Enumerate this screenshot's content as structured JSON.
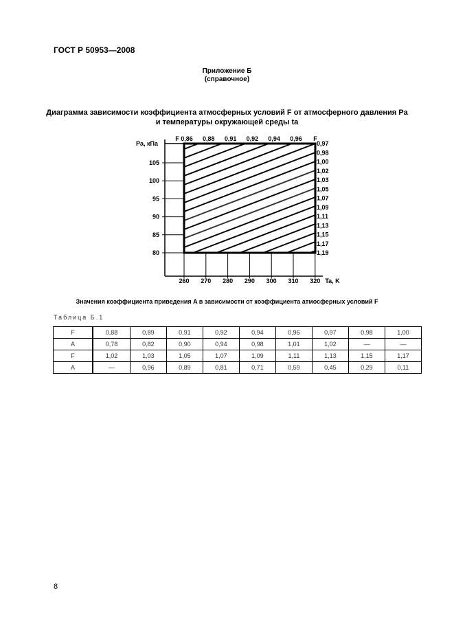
{
  "header": {
    "doc_code": "ГОСТ Р 50953—2008"
  },
  "annex": {
    "title": "Приложение Б",
    "note": "(справочное)"
  },
  "figure": {
    "title_line1": "Диаграмма зависимости коэффициента атмосферных условий F от атмосферного давления Pa",
    "title_line2": "и температуры окружающей среды ta",
    "y_axis_label": "Pa, кПа",
    "x_axis_label": "Ta, K",
    "y_ticks": [
      "80",
      "85",
      "90",
      "95",
      "100",
      "105"
    ],
    "x_ticks": [
      "260",
      "270",
      "280",
      "290",
      "300",
      "310",
      "320"
    ],
    "top_label": "F",
    "top_values": [
      "0,86",
      "0,88",
      "0,91",
      "0,92",
      "0,94",
      "0,96"
    ],
    "right_label": "F",
    "right_values": [
      "0,97",
      "0,98",
      "1,00",
      "1,02",
      "1,03",
      "1,05",
      "1,07",
      "1,09",
      "1,11",
      "1,13",
      "1,15",
      "1,17",
      "1,19"
    ]
  },
  "table": {
    "title": "Значения коэффициента приведения A в зависимости от коэффициента атмосферных условий F",
    "label": "Таблица Б.1",
    "rows": [
      [
        "F",
        "0,88",
        "0,89",
        "0,91",
        "0,92",
        "0,94",
        "0,96",
        "0,97",
        "0,98",
        "1,00"
      ],
      [
        "A",
        "0,78",
        "0,82",
        "0,90",
        "0,94",
        "0,98",
        "1,01",
        "1,02",
        "—",
        "—"
      ],
      [
        "F",
        "1,02",
        "1,03",
        "1,05",
        "1,07",
        "1,09",
        "1,11",
        "1,13",
        "1,15",
        "1,17"
      ],
      [
        "A",
        "—",
        "0,96",
        "0,89",
        "0,81",
        "0,71",
        "0,59",
        "0,45",
        "0,29",
        "0,11"
      ]
    ]
  },
  "footer": {
    "page_number": "8"
  }
}
